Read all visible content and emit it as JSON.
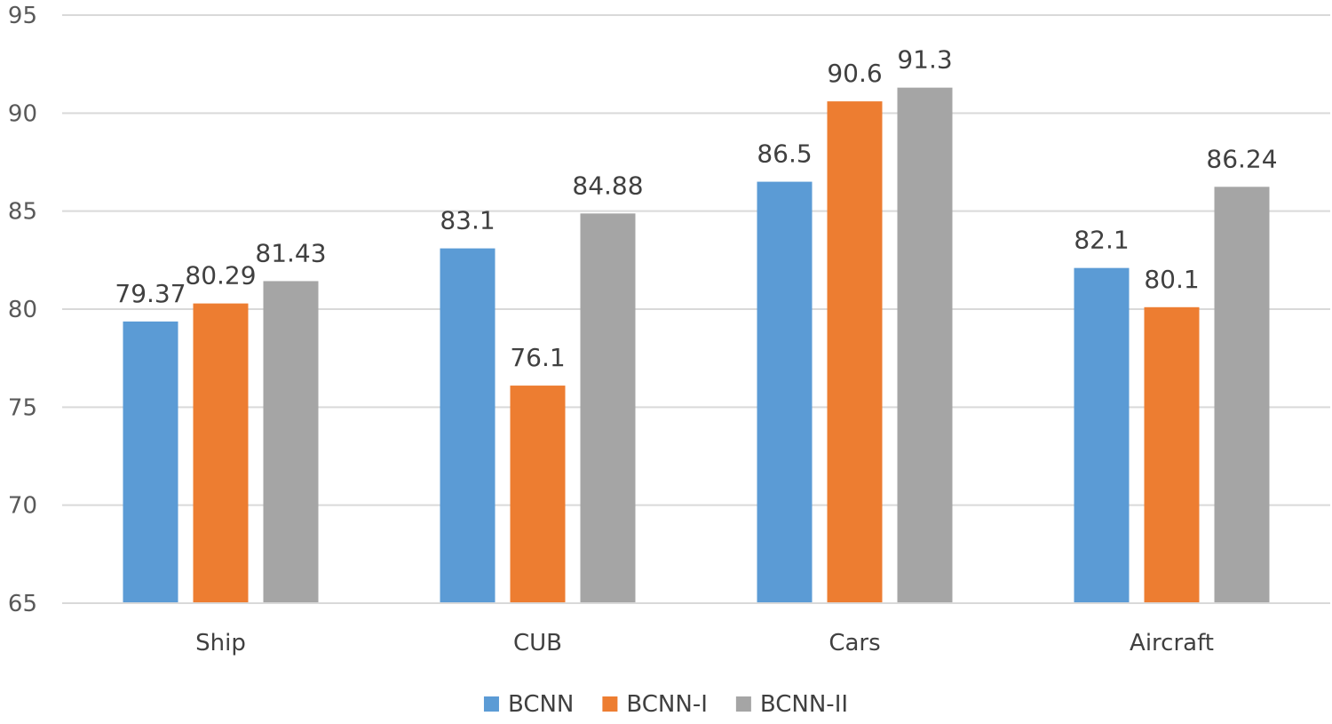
{
  "chart_data": {
    "type": "bar",
    "title": "",
    "xlabel": "",
    "ylabel": "",
    "categories": [
      "Ship",
      "CUB",
      "Cars",
      "Aircraft"
    ],
    "series": [
      {
        "name": "BCNN",
        "color": "#5B9BD5",
        "values": [
          79.37,
          83.1,
          86.5,
          82.1
        ],
        "labels": [
          "79.37",
          "83.1",
          "86.5",
          "82.1"
        ]
      },
      {
        "name": "BCNN-I",
        "color": "#ED7D31",
        "values": [
          80.29,
          76.1,
          90.6,
          80.1
        ],
        "labels": [
          "80.29",
          "76.1",
          "90.6",
          "80.1"
        ]
      },
      {
        "name": "BCNN-II",
        "color": "#A5A5A5",
        "values": [
          81.43,
          84.88,
          91.3,
          86.24
        ],
        "labels": [
          "81.43",
          "84.88",
          "91.3",
          "86.24"
        ]
      }
    ],
    "ylim": [
      65,
      95
    ],
    "yticks": [
      65,
      70,
      75,
      80,
      85,
      90,
      95
    ],
    "ytick_labels": [
      "65",
      "70",
      "75",
      "80",
      "85",
      "90",
      "95"
    ],
    "grid": true,
    "legend_position": "bottom-center"
  }
}
